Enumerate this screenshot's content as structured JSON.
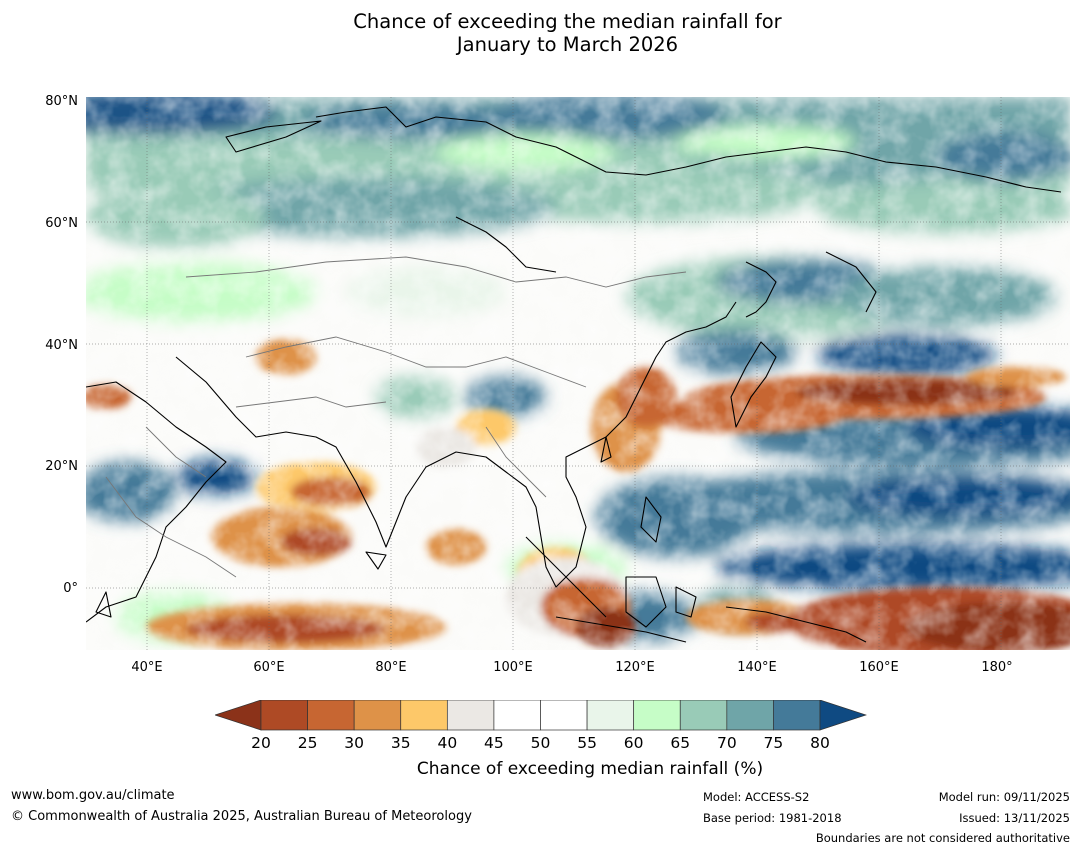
{
  "title": {
    "line1": "Chance of exceeding the median rainfall for",
    "line2": "January to March 2026"
  },
  "axes": {
    "lat_labels": [
      "80°N",
      "60°N",
      "40°N",
      "20°N",
      "0°"
    ],
    "lon_labels": [
      "40°E",
      "60°E",
      "80°E",
      "100°E",
      "120°E",
      "140°E",
      "160°E",
      "180°"
    ],
    "lat_range": [
      -10,
      80
    ],
    "lon_range": [
      30,
      191
    ]
  },
  "colorbar": {
    "label": "Chance of exceeding median rainfall (%)",
    "ticks": [
      "20",
      "25",
      "30",
      "35",
      "40",
      "45",
      "50",
      "55",
      "60",
      "65",
      "70",
      "75",
      "80"
    ],
    "colors": [
      "#8b3219",
      "#ae4a25",
      "#c76632",
      "#de9248",
      "#fdc869",
      "#ebe8e4",
      "#ffffff",
      "#ffffff",
      "#e9f5ea",
      "#c6fdc7",
      "#99cbb7",
      "#6fa5a8",
      "#447a99",
      "#0f4a82"
    ]
  },
  "footer": {
    "url": "www.bom.gov.au/climate",
    "copyright": "© Commonwealth of Australia 2025, Australian Bureau of Meteorology",
    "model": "Model: ACCESS-S2",
    "base_period": "Base period: 1981-2018",
    "model_run": "Model run: 09/11/2025",
    "issued": "Issued: 13/11/2025",
    "disclaimer": "Boundaries are not considered authoritative"
  }
}
